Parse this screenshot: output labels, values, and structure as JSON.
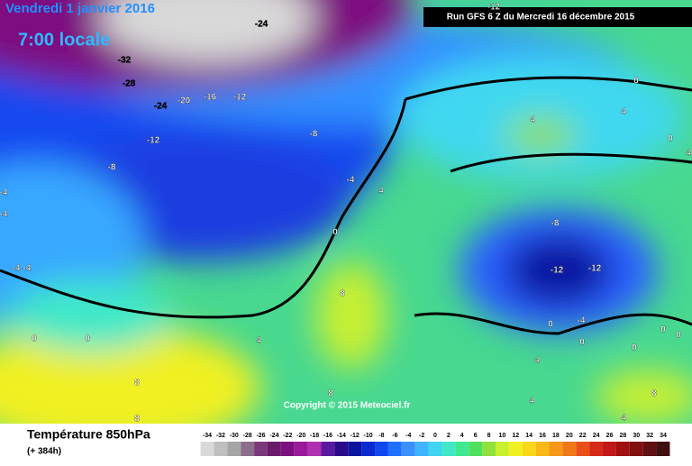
{
  "header": {
    "valid_date": "Vendredi 1 janvier 2016",
    "local_time": "7:00 locale",
    "run": "Run GFS 6 Z du Mercredi 16 décembre 2015",
    "copyright": "Copyright © 2015 Meteociel.fr"
  },
  "footer": {
    "field": "Température 850hPa",
    "lead": "(+ 384h)"
  },
  "legend": {
    "ticks": [
      -34,
      -32,
      -30,
      -28,
      -26,
      -24,
      -22,
      -20,
      -18,
      -16,
      -14,
      -12,
      -10,
      -8,
      -6,
      -4,
      -2,
      0,
      2,
      4,
      6,
      8,
      10,
      12,
      14,
      16,
      18,
      20,
      22,
      24,
      26,
      28,
      30,
      32,
      34
    ],
    "colors": [
      "#d9d9d9",
      "#bfbfbf",
      "#a6a6a6",
      "#8c6d8c",
      "#7a3a7a",
      "#6a1a6a",
      "#7d1080",
      "#9b1a9b",
      "#b030b0",
      "#5a1aa0",
      "#2a0a8a",
      "#0a14a0",
      "#0a2ad0",
      "#1048f0",
      "#2070ff",
      "#3a90ff",
      "#40b4ff",
      "#40d4f0",
      "#40e8c8",
      "#40e890",
      "#50e060",
      "#90e040",
      "#c8f030",
      "#f0f020",
      "#f8d818",
      "#f8b818",
      "#f89818",
      "#f07818",
      "#e85018",
      "#d82818",
      "#c01818",
      "#a01010",
      "#801010",
      "#601010",
      "#401010"
    ]
  },
  "contour_labels": [
    -12,
    -24,
    -32,
    -28,
    -24,
    -20,
    -16,
    -12,
    -12,
    -8,
    -8,
    -4,
    -4,
    -4,
    4,
    0,
    -4,
    -4,
    8,
    4,
    0,
    0,
    8,
    8,
    8,
    0,
    4,
    4,
    0,
    4,
    -8,
    -12,
    -12,
    0,
    -4,
    0,
    4,
    0,
    0,
    0,
    8,
    4,
    4
  ]
}
